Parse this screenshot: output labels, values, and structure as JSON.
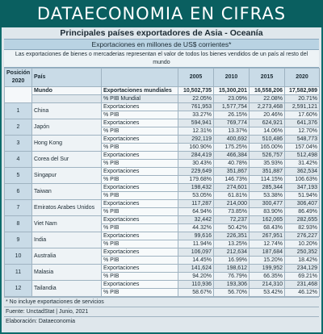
{
  "banner_title": "DATAECONOMIA EN CIFRAS",
  "table_title": "Principales países exportadores de Asia - Oceanía",
  "subtitle": "Exportaciones en millones de US$ corrientes*",
  "intro": "Las exportaciones de bienes o mercaderias representan el valor de todos los bienes vendidos de un país al resto del mundo",
  "columns": {
    "position": "Posición 2020",
    "country": "País",
    "year1": "2005",
    "year2": "2010",
    "year3": "2015",
    "year4": "2020"
  },
  "world": {
    "label": "Mundo",
    "exp_label": "Exportaciones mundiales",
    "exp": [
      "10,502,735",
      "15,300,201",
      "16,558,206",
      "17,582,989"
    ],
    "pct_label": "% PIB Mundial",
    "pct": [
      "22.05%",
      "23.09%",
      "22.08%",
      "20.71%"
    ]
  },
  "labels": {
    "exports": "Exportaciones",
    "pct": "% PIB"
  },
  "rows": [
    {
      "pos": "1",
      "country": "China",
      "exp": [
        "761,953",
        "1,577,754",
        "2,273,468",
        "2,591,121"
      ],
      "pct": [
        "33.27%",
        "26.15%",
        "20.46%",
        "17.60%"
      ]
    },
    {
      "pos": "2",
      "country": "Japón",
      "exp": [
        "594,941",
        "769,774",
        "624,921",
        "641,376"
      ],
      "pct": [
        "12.31%",
        "13.37%",
        "14.06%",
        "12.70%"
      ]
    },
    {
      "pos": "3",
      "country": "Hong Kong",
      "exp": [
        "292,119",
        "400,692",
        "510,486",
        "548,773"
      ],
      "pct": [
        "160.90%",
        "175.25%",
        "165.00%",
        "157.04%"
      ]
    },
    {
      "pos": "4",
      "country": "Corea del Sur",
      "exp": [
        "284,419",
        "466,384",
        "526,757",
        "512,498"
      ],
      "pct": [
        "30.43%",
        "40.78%",
        "35.93%",
        "31.42%"
      ]
    },
    {
      "pos": "5",
      "country": "Singapur",
      "exp": [
        "229,649",
        "351,867",
        "351,887",
        "362,534"
      ],
      "pct": [
        "179.68%",
        "146.73%",
        "114.15%",
        "106.63%"
      ]
    },
    {
      "pos": "6",
      "country": "Taiwan",
      "exp": [
        "198,432",
        "274,601",
        "285,344",
        "347,193"
      ],
      "pct": [
        "53.05%",
        "61.81%",
        "53.38%",
        "51.94%"
      ]
    },
    {
      "pos": "7",
      "country": "Emiratos Arabes Unidos",
      "exp": [
        "117,287",
        "214,000",
        "300,477",
        "306,407"
      ],
      "pct": [
        "64.94%",
        "73.85%",
        "83.90%",
        "86.49%"
      ]
    },
    {
      "pos": "8",
      "country": "Viet Nam",
      "exp": [
        "32,442",
        "72,237",
        "162,065",
        "282,655"
      ],
      "pct": [
        "44.32%",
        "50.42%",
        "68.43%",
        "82.93%"
      ]
    },
    {
      "pos": "9",
      "country": "India",
      "exp": [
        "99,616",
        "226,351",
        "267,951",
        "276,227"
      ],
      "pct": [
        "11.94%",
        "13.25%",
        "12.74%",
        "10.20%"
      ]
    },
    {
      "pos": "10",
      "country": "Australia",
      "exp": [
        "106,097",
        "212,634",
        "187,684",
        "250,352"
      ],
      "pct": [
        "14.45%",
        "16.99%",
        "15.20%",
        "18.42%"
      ]
    },
    {
      "pos": "11",
      "country": "Malasia",
      "exp": [
        "141,624",
        "198,612",
        "199,952",
        "234,129"
      ],
      "pct": [
        "94.20%",
        "76.79%",
        "66.35%",
        "69.21%"
      ]
    },
    {
      "pos": "12",
      "country": "Tailandia",
      "exp": [
        "110,936",
        "193,306",
        "214,310",
        "231,468"
      ],
      "pct": [
        "58.67%",
        "56.70%",
        "53.42%",
        "46.12%"
      ]
    }
  ],
  "footnote": "* No incluye exportaciones de servicios",
  "source": "Fuente: UnctadStat  |  Junio, 2021",
  "author": "Elaboración: Dataeconomia"
}
